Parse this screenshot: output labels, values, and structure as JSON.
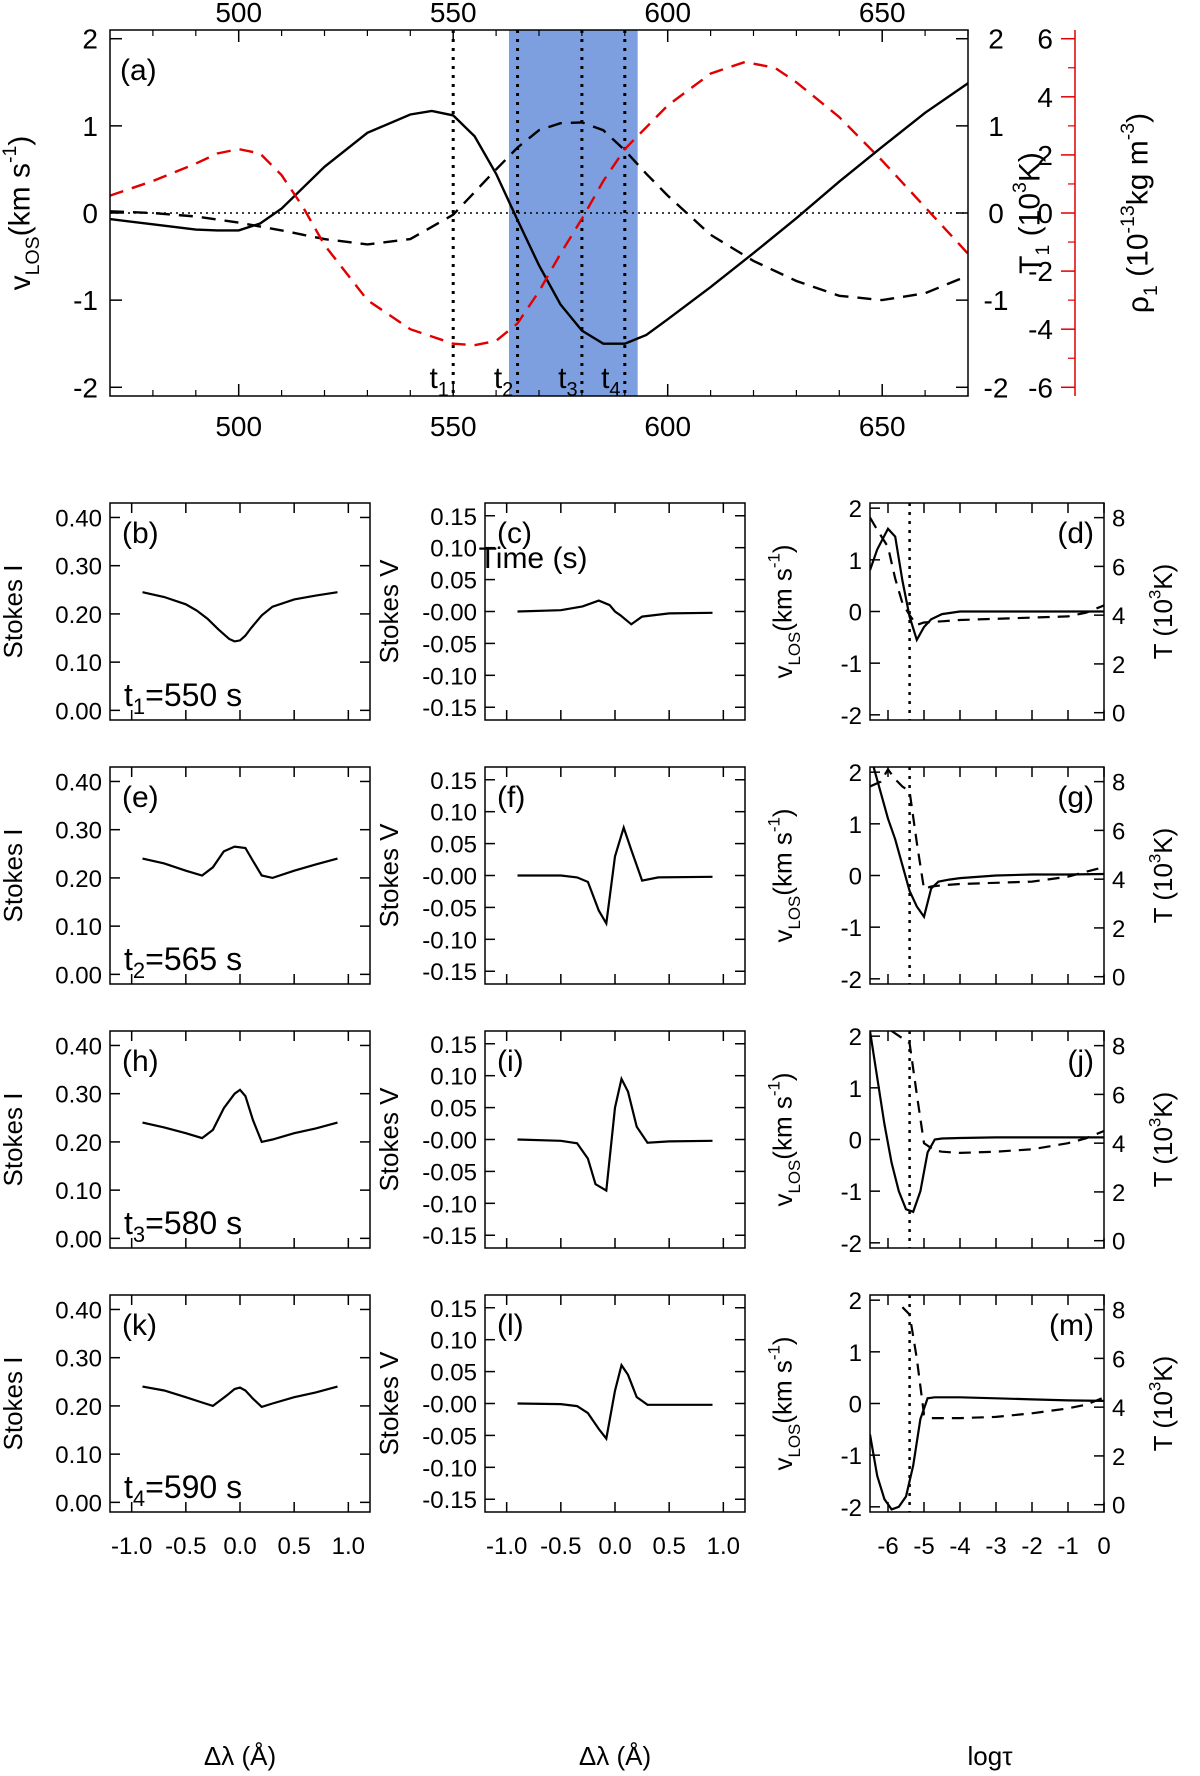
{
  "figure": {
    "top_xlabel": "Time (s)",
    "row_xlabels": [
      "Δλ (Å)",
      "Δλ (Å)",
      "logτ"
    ],
    "colors": {
      "black": "#000000",
      "red": "#e00000",
      "shade": "#7d9fe0"
    }
  },
  "chart_data": [
    {
      "panel": "(a)",
      "type": "line",
      "xlabel": "Time (s)",
      "xlim": [
        470,
        670
      ],
      "xticks": [
        500,
        550,
        600,
        650
      ],
      "ylabel_left": "v_LOS(km s^-1)",
      "ylim_left": [
        -2.1,
        2.1
      ],
      "yticks_left": [
        -2,
        -1,
        0,
        1,
        2
      ],
      "ylabel_right1": "T_1 (10^3K)",
      "ylim_right1": [
        -2.1,
        2.1
      ],
      "yticks_right1": [
        -2,
        -1,
        0,
        1,
        2
      ],
      "ylabel_right2": "ρ_1 (10^-13kg m^-3)",
      "ylim_right2": [
        -6.3,
        6.3
      ],
      "yticks_right2": [
        -6,
        -4,
        -2,
        0,
        2,
        4,
        6
      ],
      "shaded_interval": [
        563,
        593
      ],
      "vlines": [
        {
          "x": 550,
          "label": "t",
          "sub": "1"
        },
        {
          "x": 565,
          "label": "t",
          "sub": "2"
        },
        {
          "x": 580,
          "label": "t",
          "sub": "3"
        },
        {
          "x": 590,
          "label": "t",
          "sub": "4"
        }
      ],
      "series": [
        {
          "style": "solid",
          "color": "#000000",
          "axis": "left",
          "x": [
            470,
            480,
            490,
            495,
            500,
            505,
            510,
            520,
            530,
            540,
            545,
            550,
            555,
            560,
            565,
            570,
            575,
            580,
            585,
            590,
            595,
            600,
            610,
            620,
            630,
            640,
            650,
            660,
            670
          ],
          "y": [
            -0.07,
            -0.13,
            -0.19,
            -0.2,
            -0.2,
            -0.12,
            0.05,
            0.53,
            0.92,
            1.13,
            1.17,
            1.12,
            0.88,
            0.45,
            -0.08,
            -0.6,
            -1.05,
            -1.35,
            -1.5,
            -1.5,
            -1.4,
            -1.22,
            -0.85,
            -0.46,
            -0.06,
            0.36,
            0.76,
            1.15,
            1.49
          ]
        },
        {
          "style": "dashed",
          "color": "#000000",
          "axis": "right1",
          "x": [
            470,
            480,
            490,
            500,
            510,
            520,
            530,
            540,
            550,
            560,
            565,
            570,
            575,
            580,
            585,
            590,
            595,
            600,
            610,
            620,
            630,
            640,
            650,
            660,
            670
          ],
          "y": [
            0.02,
            0.0,
            -0.04,
            -0.11,
            -0.2,
            -0.3,
            -0.36,
            -0.3,
            -0.02,
            0.5,
            0.75,
            0.95,
            1.03,
            1.04,
            0.95,
            0.72,
            0.45,
            0.2,
            -0.25,
            -0.55,
            -0.78,
            -0.95,
            -1.0,
            -0.92,
            -0.72
          ]
        },
        {
          "style": "dashed",
          "color": "#e00000",
          "axis": "right2",
          "x": [
            470,
            480,
            490,
            495,
            500,
            505,
            510,
            515,
            520,
            530,
            540,
            550,
            555,
            560,
            565,
            570,
            575,
            580,
            585,
            590,
            600,
            610,
            618,
            625,
            630,
            640,
            650,
            660,
            670
          ],
          "y": [
            0.6,
            1.1,
            1.7,
            2.05,
            2.2,
            2.05,
            1.3,
            0.2,
            -1.1,
            -3.0,
            -4.0,
            -4.5,
            -4.55,
            -4.4,
            -3.8,
            -2.7,
            -1.4,
            -0.2,
            1.1,
            2.2,
            3.7,
            4.8,
            5.2,
            5.0,
            4.5,
            3.3,
            1.8,
            0.2,
            -1.4
          ]
        }
      ]
    },
    {
      "panel": "(b)",
      "type": "line",
      "ylabel": "Stokes I",
      "xlim": [
        -1.2,
        1.2
      ],
      "ylim": [
        -0.02,
        0.43
      ],
      "yticks": [
        0.0,
        0.1,
        0.2,
        0.3,
        0.4
      ],
      "label_t": "t",
      "label_sub": "1",
      "label_rest": "=550 s",
      "x": [
        -0.9,
        -0.7,
        -0.5,
        -0.4,
        -0.3,
        -0.2,
        -0.1,
        -0.05,
        0.0,
        0.05,
        0.1,
        0.2,
        0.3,
        0.5,
        0.7,
        0.9
      ],
      "y": [
        0.245,
        0.235,
        0.22,
        0.207,
        0.19,
        0.168,
        0.148,
        0.143,
        0.145,
        0.155,
        0.17,
        0.197,
        0.215,
        0.23,
        0.238,
        0.245
      ]
    },
    {
      "panel": "(c)",
      "type": "line",
      "ylabel": "Stokes V",
      "xlim": [
        -1.2,
        1.2
      ],
      "ylim": [
        -0.17,
        0.17
      ],
      "yticks": [
        -0.15,
        -0.1,
        -0.05,
        -0.0,
        0.05,
        0.1,
        0.15
      ],
      "x": [
        -0.9,
        -0.5,
        -0.3,
        -0.15,
        -0.05,
        0.0,
        0.05,
        0.15,
        0.25,
        0.5,
        0.9
      ],
      "y": [
        0.0,
        0.002,
        0.008,
        0.017,
        0.01,
        0.0,
        -0.006,
        -0.02,
        -0.008,
        -0.003,
        -0.002
      ]
    },
    {
      "panel": "(d)",
      "type": "line",
      "ylabel_left": "v_LOS(km s^-1)",
      "ylabel_right": "T (10^3K)",
      "xlim": [
        -6.5,
        0
      ],
      "xticks": [
        -6,
        -5,
        -4,
        -3,
        -2,
        -1,
        0
      ],
      "ylim": [
        -2.1,
        2.1
      ],
      "yticks": [
        -2,
        -1,
        0,
        1,
        2
      ],
      "ylim_right": [
        -0.3,
        8.6
      ],
      "yticks_right": [
        0,
        2,
        4,
        6,
        8
      ],
      "vline": -5.4,
      "solid": {
        "x": [
          -6.5,
          -6.3,
          -6.0,
          -5.8,
          -5.6,
          -5.4,
          -5.2,
          -5.0,
          -4.8,
          -4.5,
          -4.0,
          -3.0,
          -2.0,
          -1.0,
          0.0
        ],
        "y": [
          0.8,
          1.2,
          1.6,
          1.45,
          0.6,
          -0.1,
          -0.55,
          -0.3,
          -0.15,
          -0.05,
          0.0,
          0.0,
          0.0,
          0.0,
          0.0
        ]
      },
      "dashed": {
        "x": [
          -6.5,
          -6.3,
          -6.0,
          -5.8,
          -5.6,
          -5.4,
          -5.2,
          -5.0,
          -4.5,
          -4.0,
          -3.0,
          -2.0,
          -1.0,
          -0.5,
          0.0
        ],
        "y": [
          8.0,
          7.5,
          6.8,
          5.5,
          4.5,
          4.0,
          3.6,
          3.7,
          3.75,
          3.8,
          3.85,
          3.9,
          3.95,
          4.1,
          4.4
        ]
      }
    },
    {
      "panel": "(e)",
      "type": "line",
      "ylabel": "Stokes I",
      "xlim": [
        -1.2,
        1.2
      ],
      "ylim": [
        -0.02,
        0.43
      ],
      "yticks": [
        0.0,
        0.1,
        0.2,
        0.3,
        0.4
      ],
      "label_t": "t",
      "label_sub": "2",
      "label_rest": "=565 s",
      "x": [
        -0.9,
        -0.7,
        -0.5,
        -0.35,
        -0.25,
        -0.15,
        -0.05,
        0.05,
        0.12,
        0.2,
        0.3,
        0.5,
        0.7,
        0.9
      ],
      "y": [
        0.24,
        0.23,
        0.215,
        0.205,
        0.222,
        0.255,
        0.265,
        0.262,
        0.235,
        0.205,
        0.2,
        0.215,
        0.228,
        0.24
      ]
    },
    {
      "panel": "(f)",
      "type": "line",
      "ylabel": "Stokes V",
      "xlim": [
        -1.2,
        1.2
      ],
      "ylim": [
        -0.17,
        0.17
      ],
      "yticks": [
        -0.15,
        -0.1,
        -0.05,
        -0.0,
        0.05,
        0.1,
        0.15
      ],
      "x": [
        -0.9,
        -0.5,
        -0.35,
        -0.25,
        -0.15,
        -0.08,
        0.0,
        0.08,
        0.15,
        0.25,
        0.4,
        0.9
      ],
      "y": [
        0.0,
        0.0,
        -0.003,
        -0.01,
        -0.055,
        -0.075,
        0.03,
        0.075,
        0.04,
        -0.008,
        -0.003,
        -0.002
      ]
    },
    {
      "panel": "(g)",
      "type": "line",
      "ylabel_left": "v_LOS(km s^-1)",
      "ylabel_right": "T (10^3K)",
      "xlim": [
        -6.5,
        0
      ],
      "xticks": [
        -6,
        -5,
        -4,
        -3,
        -2,
        -1,
        0
      ],
      "ylim": [
        -2.1,
        2.1
      ],
      "yticks": [
        -2,
        -1,
        0,
        1,
        2
      ],
      "ylim_right": [
        -0.3,
        8.6
      ],
      "yticks_right": [
        0,
        2,
        4,
        6,
        8
      ],
      "vline": -5.4,
      "solid": {
        "x": [
          -6.4,
          -6.2,
          -6.0,
          -5.8,
          -5.6,
          -5.4,
          -5.2,
          -5.0,
          -4.8,
          -4.6,
          -4.3,
          -4.0,
          -3.0,
          -2.0,
          -1.0,
          0.0
        ],
        "y": [
          2.1,
          1.6,
          1.1,
          0.7,
          0.2,
          -0.3,
          -0.6,
          -0.8,
          -0.25,
          -0.12,
          -0.08,
          -0.05,
          0.0,
          0.02,
          0.02,
          0.03
        ]
      },
      "dashed": {
        "x": [
          -6.5,
          -6.2,
          -6.0,
          -5.8,
          -5.6,
          -5.4,
          -5.2,
          -5.0,
          -4.8,
          -4.5,
          -4.0,
          -3.0,
          -2.0,
          -1.0,
          -0.5,
          0.0
        ],
        "y": [
          7.8,
          8.0,
          8.5,
          8.1,
          7.8,
          7.6,
          5.5,
          3.6,
          3.7,
          3.75,
          3.8,
          3.85,
          3.9,
          4.1,
          4.3,
          4.5
        ]
      }
    },
    {
      "panel": "(h)",
      "type": "line",
      "ylabel": "Stokes I",
      "xlim": [
        -1.2,
        1.2
      ],
      "ylim": [
        -0.02,
        0.43
      ],
      "yticks": [
        0.0,
        0.1,
        0.2,
        0.3,
        0.4
      ],
      "label_t": "t",
      "label_sub": "3",
      "label_rest": "=580 s",
      "x": [
        -0.9,
        -0.7,
        -0.5,
        -0.35,
        -0.25,
        -0.15,
        -0.05,
        0.0,
        0.05,
        0.12,
        0.2,
        0.3,
        0.5,
        0.7,
        0.9
      ],
      "y": [
        0.24,
        0.23,
        0.218,
        0.208,
        0.225,
        0.27,
        0.3,
        0.308,
        0.295,
        0.245,
        0.2,
        0.205,
        0.218,
        0.228,
        0.24
      ]
    },
    {
      "panel": "(i)",
      "type": "line",
      "ylabel": "Stokes V",
      "xlim": [
        -1.2,
        1.2
      ],
      "ylim": [
        -0.17,
        0.17
      ],
      "yticks": [
        -0.15,
        -0.1,
        -0.05,
        -0.0,
        0.05,
        0.1,
        0.15
      ],
      "x": [
        -0.9,
        -0.5,
        -0.35,
        -0.25,
        -0.18,
        -0.08,
        0.0,
        0.06,
        0.12,
        0.2,
        0.3,
        0.5,
        0.9
      ],
      "y": [
        0.0,
        -0.002,
        -0.006,
        -0.03,
        -0.07,
        -0.08,
        0.05,
        0.095,
        0.075,
        0.02,
        -0.005,
        -0.003,
        -0.002
      ]
    },
    {
      "panel": "(j)",
      "type": "line",
      "ylabel_left": "v_LOS(km s^-1)",
      "ylabel_right": "T (10^3K)",
      "xlim": [
        -6.5,
        0
      ],
      "xticks": [
        -6,
        -5,
        -4,
        -3,
        -2,
        -1,
        0
      ],
      "ylim": [
        -2.1,
        2.1
      ],
      "yticks": [
        -2,
        -1,
        0,
        1,
        2
      ],
      "ylim_right": [
        -0.3,
        8.6
      ],
      "yticks_right": [
        0,
        2,
        4,
        6,
        8
      ],
      "vline": -5.4,
      "solid": {
        "x": [
          -6.5,
          -6.3,
          -6.1,
          -5.9,
          -5.7,
          -5.5,
          -5.3,
          -5.1,
          -4.9,
          -4.7,
          -4.5,
          -4.0,
          -3.0,
          -2.0,
          -1.0,
          0.0
        ],
        "y": [
          2.1,
          1.2,
          0.3,
          -0.45,
          -1.0,
          -1.35,
          -1.4,
          -1.0,
          -0.25,
          0.0,
          0.02,
          0.03,
          0.04,
          0.04,
          0.04,
          0.04
        ]
      },
      "dashed": {
        "x": [
          -5.9,
          -5.6,
          -5.4,
          -5.2,
          -5.0,
          -4.7,
          -4.5,
          -4.0,
          -3.0,
          -2.0,
          -1.0,
          -0.5,
          0.0
        ],
        "y": [
          8.6,
          8.3,
          8.1,
          6.0,
          4.0,
          3.7,
          3.65,
          3.6,
          3.65,
          3.75,
          4.0,
          4.2,
          4.5
        ]
      }
    },
    {
      "panel": "(k)",
      "type": "line",
      "ylabel": "Stokes I",
      "xlim": [
        -1.2,
        1.2
      ],
      "ylim": [
        -0.02,
        0.43
      ],
      "yticks": [
        0.0,
        0.1,
        0.2,
        0.3,
        0.4
      ],
      "label_t": "t",
      "label_sub": "4",
      "label_rest": "=590 s",
      "x": [
        -0.9,
        -0.7,
        -0.5,
        -0.35,
        -0.25,
        -0.12,
        -0.05,
        0.0,
        0.05,
        0.12,
        0.2,
        0.3,
        0.5,
        0.7,
        0.9
      ],
      "y": [
        0.24,
        0.232,
        0.218,
        0.207,
        0.2,
        0.222,
        0.235,
        0.238,
        0.232,
        0.215,
        0.198,
        0.205,
        0.218,
        0.228,
        0.24
      ]
    },
    {
      "panel": "(l)",
      "type": "line",
      "ylabel": "Stokes V",
      "xlim": [
        -1.2,
        1.2
      ],
      "ylim": [
        -0.17,
        0.17
      ],
      "yticks": [
        -0.15,
        -0.1,
        -0.05,
        -0.0,
        0.05,
        0.1,
        0.15
      ],
      "x": [
        -0.9,
        -0.5,
        -0.35,
        -0.25,
        -0.15,
        -0.08,
        0.0,
        0.06,
        0.12,
        0.2,
        0.3,
        0.5,
        0.9
      ],
      "y": [
        0.0,
        -0.001,
        -0.004,
        -0.015,
        -0.04,
        -0.055,
        0.02,
        0.06,
        0.045,
        0.01,
        -0.002,
        -0.002,
        -0.002
      ]
    },
    {
      "panel": "(m)",
      "type": "line",
      "ylabel_left": "v_LOS(km s^-1)",
      "ylabel_right": "T (10^3K)",
      "xlim": [
        -6.5,
        0
      ],
      "xticks": [
        -6,
        -5,
        -4,
        -3,
        -2,
        -1,
        0
      ],
      "ylim": [
        -2.1,
        2.1
      ],
      "yticks": [
        -2,
        -1,
        0,
        1,
        2
      ],
      "ylim_right": [
        -0.3,
        8.6
      ],
      "yticks_right": [
        0,
        2,
        4,
        6,
        8
      ],
      "vline": -5.4,
      "solid": {
        "x": [
          -6.5,
          -6.3,
          -6.1,
          -5.9,
          -5.7,
          -5.5,
          -5.3,
          -5.1,
          -4.9,
          -4.7,
          -4.5,
          -4.0,
          -3.0,
          -2.0,
          -1.0,
          0.0
        ],
        "y": [
          -0.6,
          -1.4,
          -1.85,
          -2.05,
          -2.0,
          -1.8,
          -1.2,
          -0.3,
          0.1,
          0.12,
          0.12,
          0.12,
          0.1,
          0.08,
          0.06,
          0.05
        ]
      },
      "dashed": {
        "x": [
          -5.6,
          -5.4,
          -5.2,
          -5.0,
          -4.8,
          -4.5,
          -4.0,
          -3.0,
          -2.0,
          -1.0,
          -0.5,
          0.0
        ],
        "y": [
          8.1,
          7.8,
          6.0,
          3.7,
          3.55,
          3.55,
          3.55,
          3.6,
          3.75,
          3.95,
          4.1,
          4.4
        ]
      }
    }
  ]
}
